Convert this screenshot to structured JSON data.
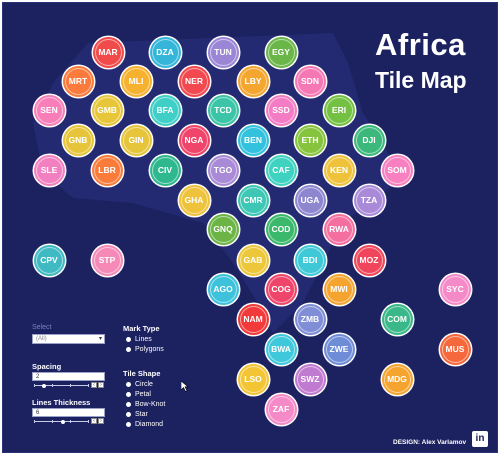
{
  "title": {
    "line1": "Africa",
    "line2": "Tile Map"
  },
  "controls": {
    "select_label": "Select",
    "select_value": "(All)",
    "mark_type": {
      "label": "Mark Type",
      "options": [
        "Lines",
        "Polygons"
      ]
    },
    "spacing": {
      "label": "Spacing",
      "value": "2"
    },
    "lines_thickness": {
      "label": "Lines Thickness",
      "value": "6"
    },
    "tile_shape": {
      "label": "Tile Shape",
      "options": [
        "Circle",
        "Petal",
        "Bow-Knot",
        "Star",
        "Diamond"
      ]
    }
  },
  "credit": "DESIGN: Alex Varlamov",
  "linkedin_icon": "linkedin-icon",
  "colors": {
    "background": "#1c2160",
    "land_shadow": "#262c74"
  },
  "tiles": [
    {
      "code": "MAR",
      "color": "#f04a4a"
    },
    {
      "code": "DZA",
      "color": "#35b6d9"
    },
    {
      "code": "TUN",
      "color": "#9b86d6"
    },
    {
      "code": "EGY",
      "color": "#6ab648"
    },
    {
      "code": "MRT",
      "color": "#fb7a3c"
    },
    {
      "code": "MLI",
      "color": "#f6b12f"
    },
    {
      "code": "NER",
      "color": "#f2484f"
    },
    {
      "code": "LBY",
      "color": "#f5a62f"
    },
    {
      "code": "SDN",
      "color": "#f578b4"
    },
    {
      "code": "SEN",
      "color": "#f77eb8"
    },
    {
      "code": "GMB",
      "color": "#e8c63a"
    },
    {
      "code": "BFA",
      "color": "#3fcfc7"
    },
    {
      "code": "TCD",
      "color": "#3cc4a6"
    },
    {
      "code": "SSD",
      "color": "#f37cc4"
    },
    {
      "code": "ERI",
      "color": "#74c043"
    },
    {
      "code": "GNB",
      "color": "#e6c53a"
    },
    {
      "code": "GIN",
      "color": "#e6c53a"
    },
    {
      "code": "NGA",
      "color": "#f0456a"
    },
    {
      "code": "BEN",
      "color": "#33c2dd"
    },
    {
      "code": "ETH",
      "color": "#86c43e"
    },
    {
      "code": "DJI",
      "color": "#3cb87c"
    },
    {
      "code": "SLE",
      "color": "#f280c0"
    },
    {
      "code": "LBR",
      "color": "#fb7c3a"
    },
    {
      "code": "CIV",
      "color": "#2fb88e"
    },
    {
      "code": "TGO",
      "color": "#a98ad6"
    },
    {
      "code": "CAF",
      "color": "#3fd2c0"
    },
    {
      "code": "KEN",
      "color": "#eec23a"
    },
    {
      "code": "SOM",
      "color": "#f880c0"
    },
    {
      "code": "GHA",
      "color": "#eec23a"
    },
    {
      "code": "CMR",
      "color": "#3fc7b6"
    },
    {
      "code": "UGA",
      "color": "#8f86d0"
    },
    {
      "code": "TZA",
      "color": "#a88ad8"
    },
    {
      "code": "GNQ",
      "color": "#6bb445"
    },
    {
      "code": "COD",
      "color": "#3ab86c"
    },
    {
      "code": "RWA",
      "color": "#f56ea0"
    },
    {
      "code": "CPV",
      "color": "#3fb9c2"
    },
    {
      "code": "STP",
      "color": "#f58ab8"
    },
    {
      "code": "GAB",
      "color": "#ecc73a"
    },
    {
      "code": "BDI",
      "color": "#3fc8d6"
    },
    {
      "code": "MOZ",
      "color": "#f0455a"
    },
    {
      "code": "AGO",
      "color": "#3ec2dc"
    },
    {
      "code": "COG",
      "color": "#f0456a"
    },
    {
      "code": "MWI",
      "color": "#f5a52f"
    },
    {
      "code": "SYC",
      "color": "#f58ac8"
    },
    {
      "code": "COM",
      "color": "#3ab88a"
    },
    {
      "code": "NAM",
      "color": "#f23a3a"
    },
    {
      "code": "ZMB",
      "color": "#7f8ed6"
    },
    {
      "code": "MUS",
      "color": "#f5683c"
    },
    {
      "code": "BWA",
      "color": "#3fc8dc"
    },
    {
      "code": "ZWE",
      "color": "#6f8cd6"
    },
    {
      "code": "LSO",
      "color": "#f3c534"
    },
    {
      "code": "SWZ",
      "color": "#c07ad0"
    },
    {
      "code": "MDG",
      "color": "#f5a52f"
    },
    {
      "code": "ZAF",
      "color": "#f58ac8"
    }
  ]
}
